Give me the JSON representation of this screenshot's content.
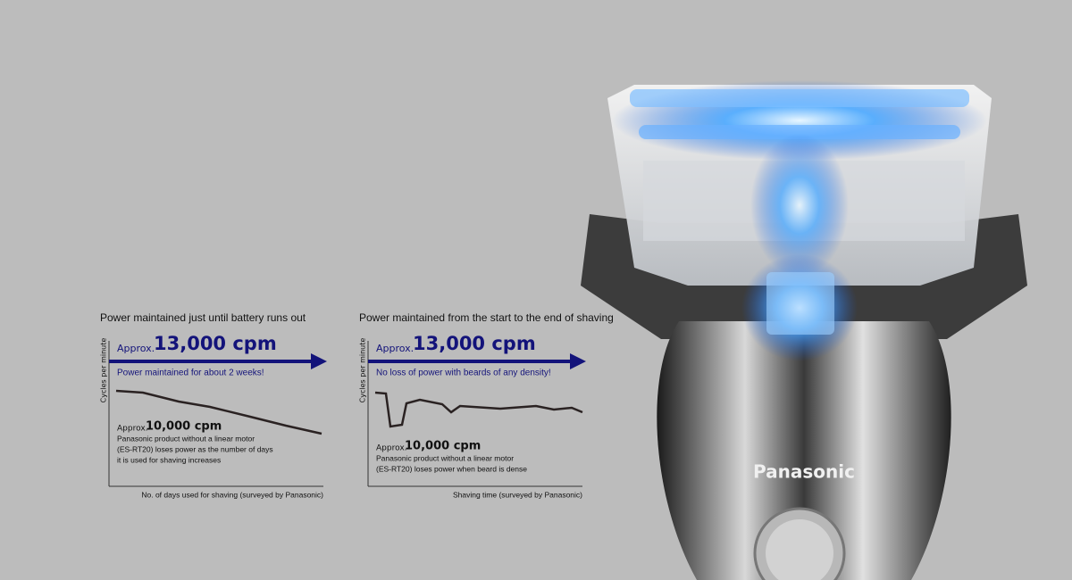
{
  "panels": [
    {
      "title": "Power maintained just until battery runs out",
      "y_axis_label": "Cycles per minute",
      "high_prefix": "Approx.",
      "high_value": "13,000 cpm",
      "high_note": "Power maintained for about 2 weeks!",
      "low_prefix": "Approx.",
      "low_value": "10,000 cpm",
      "low_note": [
        "Panasonic product without a linear motor",
        "(ES-RT20) loses power as the number of days",
        "it is used for shaving increases"
      ],
      "x_axis_label": "No. of days used for shaving (surveyed by Panasonic)"
    },
    {
      "title": "Power maintained from the start to the end of shaving",
      "y_axis_label": "Cycles per minute",
      "high_prefix": "Approx.",
      "high_value": "13,000 cpm",
      "high_note": "No loss of power with beards of any density!",
      "low_prefix": "Approx.",
      "low_value": "10,000 cpm",
      "low_note": [
        "Panasonic product without a linear motor",
        "(ES-RT20) loses power when beard is dense"
      ],
      "x_axis_label": "Shaving time (surveyed by Panasonic)"
    }
  ],
  "brand": "Panasonic"
}
